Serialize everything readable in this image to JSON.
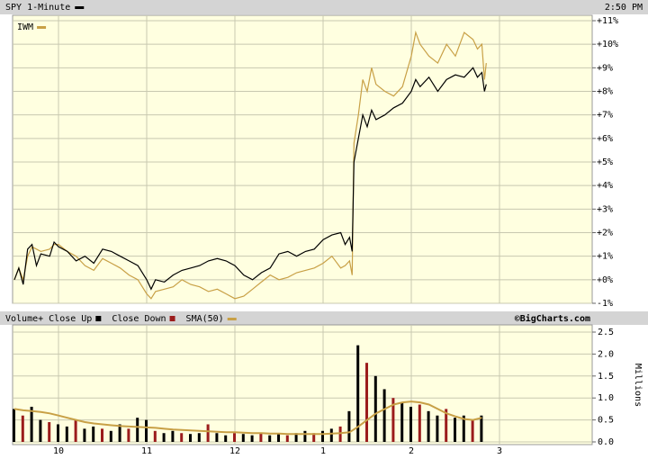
{
  "chart_data": [
    {
      "type": "line",
      "timestamp": "2:50 PM",
      "x": [
        9.5,
        9.55,
        9.6,
        9.65,
        9.7,
        9.75,
        9.8,
        9.9,
        9.95,
        10.0,
        10.1,
        10.2,
        10.3,
        10.4,
        10.5,
        10.6,
        10.7,
        10.8,
        10.9,
        11.0,
        11.05,
        11.1,
        11.2,
        11.3,
        11.4,
        11.5,
        11.6,
        11.7,
        11.8,
        11.9,
        12.0,
        12.1,
        12.2,
        12.3,
        12.4,
        12.5,
        12.6,
        12.7,
        12.8,
        12.9,
        13.0,
        13.1,
        13.2,
        13.25,
        13.3,
        13.33,
        13.35,
        13.4,
        13.45,
        13.5,
        13.55,
        13.6,
        13.7,
        13.8,
        13.9,
        14.0,
        14.05,
        14.1,
        14.2,
        14.3,
        14.4,
        14.5,
        14.6,
        14.7,
        14.75,
        14.8,
        14.83,
        14.85
      ],
      "series": [
        {
          "name": "SPY 1-Minute",
          "color": "#000000",
          "values": [
            0.0,
            0.5,
            -0.2,
            1.3,
            1.5,
            0.6,
            1.1,
            1.0,
            1.6,
            1.4,
            1.2,
            0.8,
            1.0,
            0.7,
            1.3,
            1.2,
            1.0,
            0.8,
            0.6,
            0.0,
            -0.4,
            0.0,
            -0.1,
            0.2,
            0.4,
            0.5,
            0.6,
            0.8,
            0.9,
            0.8,
            0.6,
            0.2,
            0.0,
            0.3,
            0.5,
            1.1,
            1.2,
            1.0,
            1.2,
            1.3,
            1.7,
            1.9,
            2.0,
            1.5,
            1.8,
            1.2,
            5.0,
            6.0,
            7.0,
            6.5,
            7.2,
            6.8,
            7.0,
            7.3,
            7.5,
            8.0,
            8.5,
            8.2,
            8.6,
            8.0,
            8.5,
            8.7,
            8.6,
            9.0,
            8.6,
            8.8,
            8.0,
            8.3
          ]
        },
        {
          "name": "IWM",
          "color": "#c8a046",
          "values": [
            0.0,
            0.5,
            0.0,
            1.0,
            1.4,
            1.3,
            1.2,
            1.3,
            1.5,
            1.5,
            1.2,
            1.0,
            0.6,
            0.4,
            0.9,
            0.7,
            0.5,
            0.2,
            0.0,
            -0.6,
            -0.8,
            -0.5,
            -0.4,
            -0.3,
            0.0,
            -0.2,
            -0.3,
            -0.5,
            -0.4,
            -0.6,
            -0.8,
            -0.7,
            -0.4,
            -0.1,
            0.2,
            0.0,
            0.1,
            0.3,
            0.4,
            0.5,
            0.7,
            1.0,
            0.5,
            0.6,
            0.8,
            0.2,
            5.8,
            7.0,
            8.5,
            8.0,
            9.0,
            8.3,
            8.0,
            7.8,
            8.2,
            9.5,
            10.5,
            10.0,
            9.5,
            9.2,
            10.0,
            9.5,
            10.5,
            10.2,
            9.8,
            10.0,
            8.5,
            9.2
          ]
        }
      ],
      "xlim": [
        9.5,
        16
      ],
      "ylim": [
        -1,
        11
      ],
      "yticks": [
        {
          "value": -1,
          "label": "-1%"
        },
        {
          "value": 0,
          "label": "+0%"
        },
        {
          "value": 1,
          "label": "+1%"
        },
        {
          "value": 2,
          "label": "+2%"
        },
        {
          "value": 3,
          "label": "+3%"
        },
        {
          "value": 4,
          "label": "+4%"
        },
        {
          "value": 5,
          "label": "+5%"
        },
        {
          "value": 6,
          "label": "+6%"
        },
        {
          "value": 7,
          "label": "+7%"
        },
        {
          "value": 8,
          "label": "+8%"
        },
        {
          "value": 9,
          "label": "+9%"
        },
        {
          "value": 10,
          "label": "+10%"
        },
        {
          "value": 11,
          "label": "+11%"
        }
      ],
      "grid": true
    },
    {
      "type": "bar",
      "legend_title": "Volume+",
      "source": "©BigCharts.com",
      "y_label": "Millions",
      "x": [
        9.5,
        9.6,
        9.7,
        9.8,
        9.9,
        10.0,
        10.1,
        10.2,
        10.3,
        10.4,
        10.5,
        10.6,
        10.7,
        10.8,
        10.9,
        11.0,
        11.1,
        11.2,
        11.3,
        11.4,
        11.5,
        11.6,
        11.7,
        11.8,
        11.9,
        12.0,
        12.1,
        12.2,
        12.3,
        12.4,
        12.5,
        12.6,
        12.7,
        12.8,
        12.9,
        13.0,
        13.1,
        13.2,
        13.3,
        13.4,
        13.5,
        13.6,
        13.7,
        13.8,
        13.9,
        14.0,
        14.1,
        14.2,
        14.3,
        14.4,
        14.5,
        14.6,
        14.7,
        14.8
      ],
      "series": [
        {
          "name": "Close Up",
          "color": "#000000",
          "values": [
            0.75,
            null,
            0.8,
            0.5,
            null,
            0.4,
            0.35,
            null,
            0.3,
            0.35,
            null,
            0.25,
            0.4,
            null,
            0.55,
            0.5,
            null,
            0.2,
            0.25,
            null,
            0.18,
            0.2,
            null,
            0.2,
            0.15,
            null,
            0.18,
            0.15,
            null,
            0.15,
            0.2,
            null,
            0.2,
            0.25,
            null,
            0.25,
            0.3,
            null,
            0.7,
            2.2,
            null,
            1.5,
            1.2,
            null,
            0.9,
            0.8,
            null,
            0.7,
            0.6,
            null,
            0.55,
            0.6,
            null,
            0.6
          ]
        },
        {
          "name": "Close Down",
          "color": "#9b1c1c",
          "values": [
            null,
            0.6,
            null,
            null,
            0.45,
            null,
            null,
            0.5,
            null,
            null,
            0.3,
            null,
            null,
            0.3,
            null,
            null,
            0.25,
            null,
            null,
            0.2,
            null,
            null,
            0.4,
            null,
            null,
            0.2,
            null,
            null,
            0.2,
            null,
            null,
            0.15,
            null,
            null,
            0.2,
            null,
            null,
            0.35,
            null,
            null,
            1.8,
            null,
            null,
            1.0,
            null,
            null,
            0.85,
            null,
            null,
            0.75,
            null,
            null,
            0.5,
            null
          ]
        },
        {
          "name": "SMA(50)",
          "color": "#c8a046",
          "type": "line",
          "values": [
            0.75,
            0.72,
            0.7,
            0.68,
            0.65,
            0.6,
            0.55,
            0.5,
            0.45,
            0.42,
            0.4,
            0.38,
            0.36,
            0.35,
            0.34,
            0.33,
            0.32,
            0.3,
            0.28,
            0.27,
            0.26,
            0.25,
            0.24,
            0.23,
            0.22,
            0.22,
            0.21,
            0.2,
            0.2,
            0.19,
            0.19,
            0.18,
            0.18,
            0.18,
            0.18,
            0.18,
            0.19,
            0.2,
            0.22,
            0.35,
            0.5,
            0.65,
            0.75,
            0.85,
            0.9,
            0.92,
            0.9,
            0.85,
            0.75,
            0.65,
            0.58,
            0.52,
            0.5,
            0.55
          ]
        }
      ],
      "xlim": [
        9.5,
        16
      ],
      "xticks": [
        10,
        11,
        12,
        {
          "value": 13,
          "label": "1"
        },
        {
          "value": 14,
          "label": "2"
        },
        {
          "value": 15,
          "label": "3"
        }
      ],
      "ylim": [
        0,
        2.5
      ],
      "yticks": [
        {
          "value": 0,
          "label": "0.0"
        },
        0.5,
        {
          "value": 1,
          "label": "1.0"
        },
        1.5,
        {
          "value": 2,
          "label": "2.0"
        },
        2.5
      ],
      "grid": true
    }
  ]
}
